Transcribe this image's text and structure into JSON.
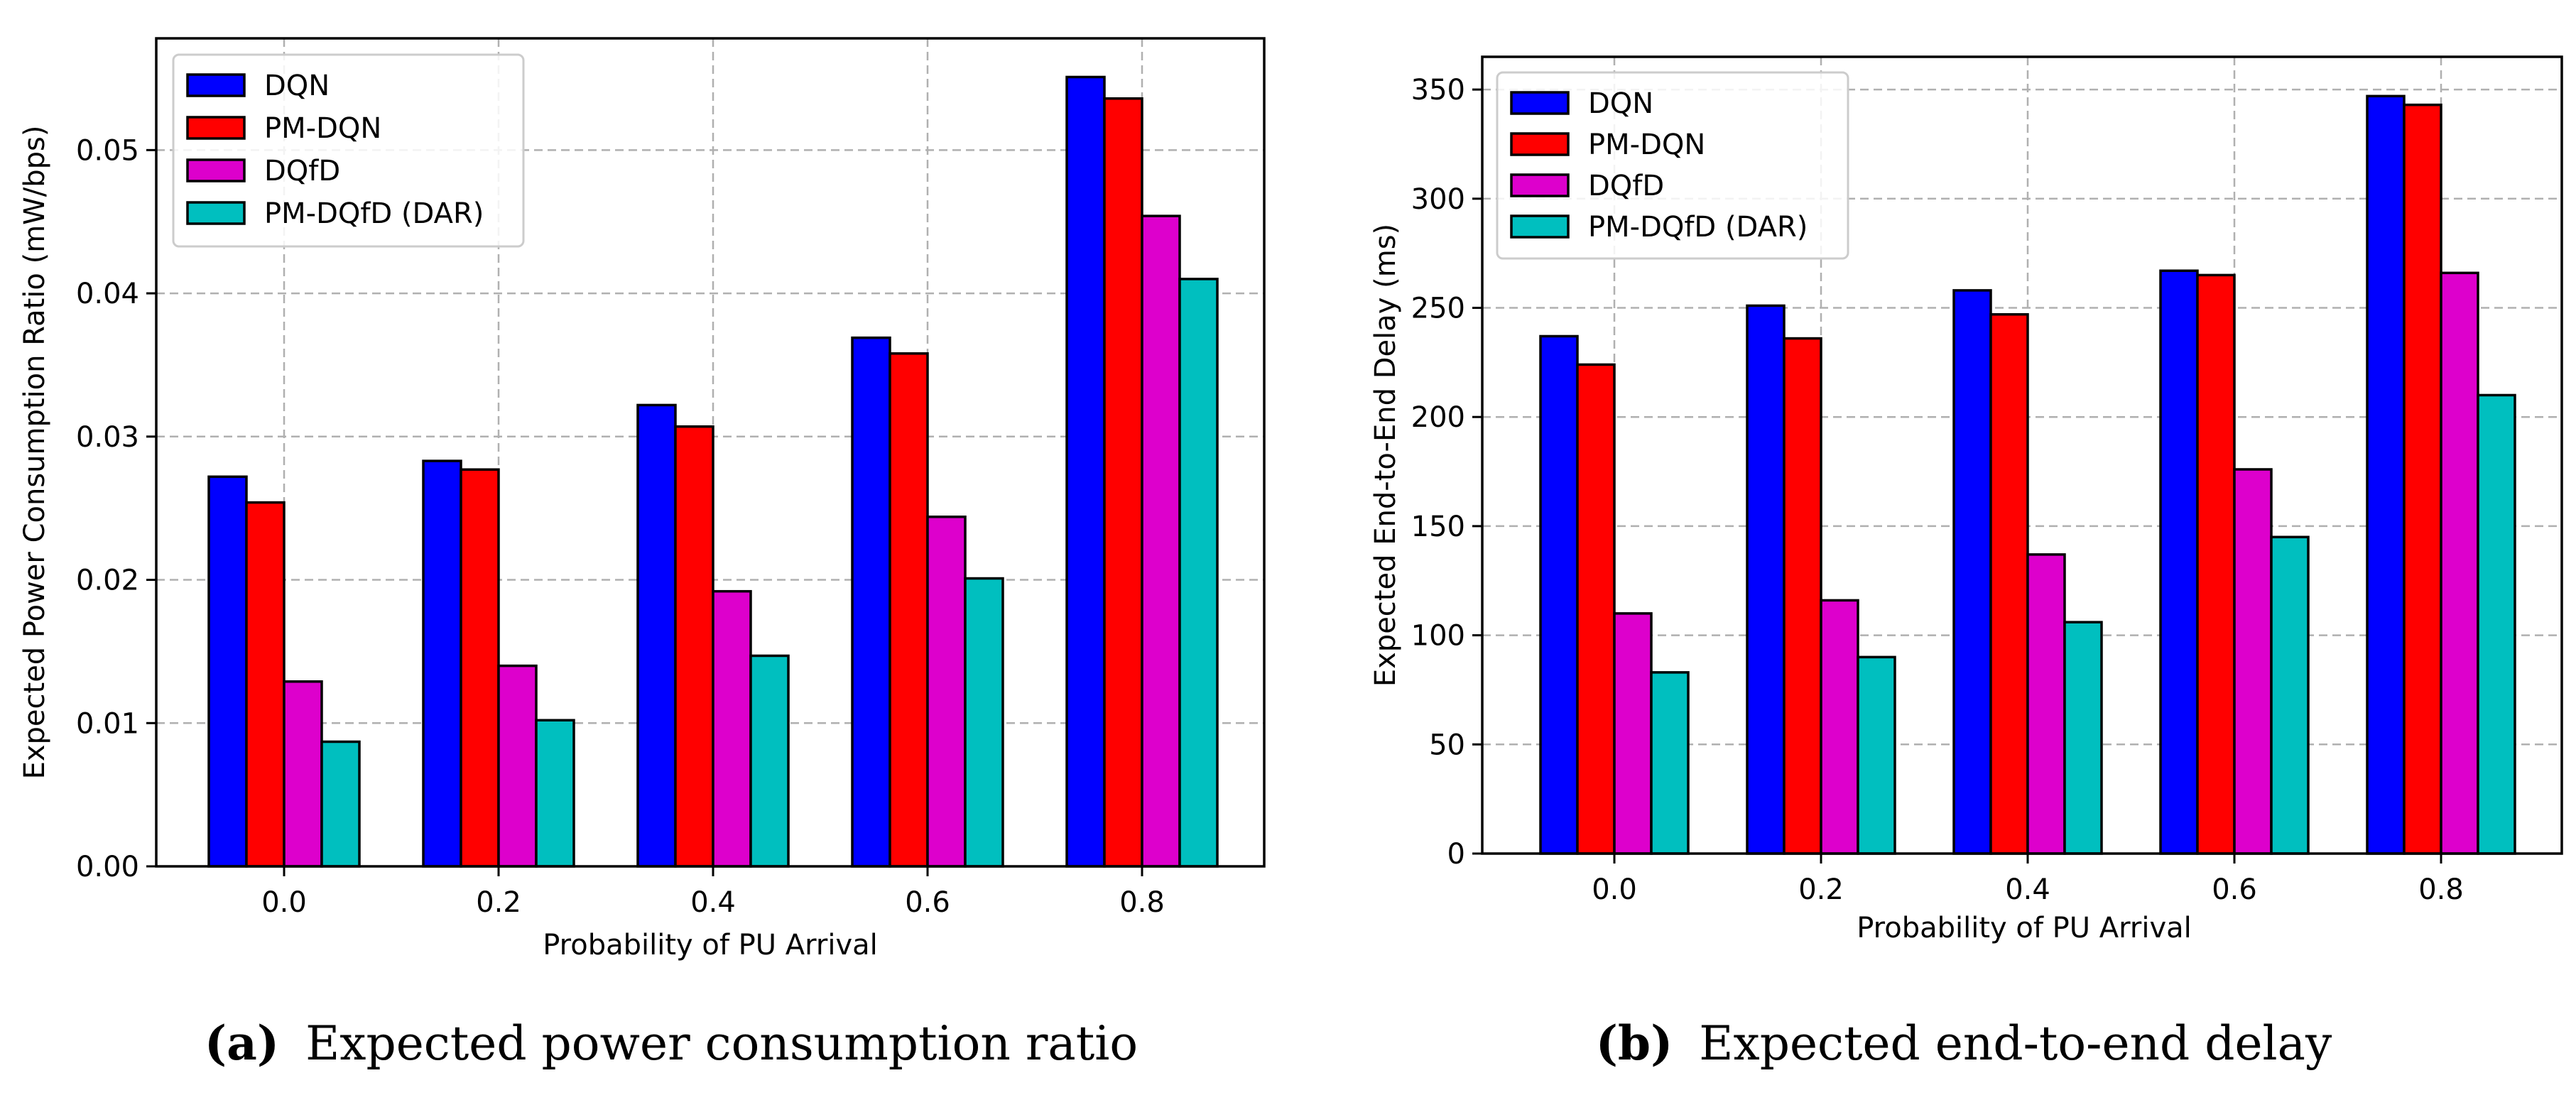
{
  "chart_data": [
    {
      "type": "bar",
      "title": "",
      "xlabel": "Probability of PU Arrival",
      "ylabel": "Expected Power Consumption Ratio (mW/bps)",
      "categories": [
        "0.0",
        "0.2",
        "0.4",
        "0.6",
        "0.8"
      ],
      "yticks": [
        "0.00",
        "0.01",
        "0.02",
        "0.03",
        "0.04",
        "0.05"
      ],
      "ylim": [
        0,
        0.0578
      ],
      "grid": true,
      "legend_position": "top-left",
      "series": [
        {
          "name": "DQN",
          "color": "#0000ff",
          "values": [
            0.0272,
            0.0283,
            0.0322,
            0.0369,
            0.0551
          ]
        },
        {
          "name": "PM-DQN",
          "color": "#ff0000",
          "values": [
            0.0254,
            0.0277,
            0.0307,
            0.0358,
            0.0536
          ]
        },
        {
          "name": "DQfD",
          "color": "#dd00cc",
          "values": [
            0.0129,
            0.014,
            0.0192,
            0.0244,
            0.0454
          ]
        },
        {
          "name": "PM-DQfD (DAR)",
          "color": "#00bfbf",
          "values": [
            0.0087,
            0.0102,
            0.0147,
            0.0201,
            0.041
          ]
        }
      ],
      "caption": {
        "label": "(a)",
        "text": "Expected power consumption ratio"
      }
    },
    {
      "type": "bar",
      "title": "",
      "xlabel": "Probability of PU Arrival",
      "ylabel": "Expected End-to-End Delay (ms)",
      "categories": [
        "0.0",
        "0.2",
        "0.4",
        "0.6",
        "0.8"
      ],
      "yticks": [
        "0",
        "50",
        "100",
        "150",
        "200",
        "250",
        "300",
        "350"
      ],
      "ylim": [
        0,
        365
      ],
      "grid": true,
      "legend_position": "top-left",
      "series": [
        {
          "name": "DQN",
          "color": "#0000ff",
          "values": [
            237,
            251,
            258,
            267,
            347
          ]
        },
        {
          "name": "PM-DQN",
          "color": "#ff0000",
          "values": [
            224,
            236,
            247,
            265,
            343
          ]
        },
        {
          "name": "DQfD",
          "color": "#dd00cc",
          "values": [
            110,
            116,
            137,
            176,
            266
          ]
        },
        {
          "name": "PM-DQfD (DAR)",
          "color": "#00bfbf",
          "values": [
            83,
            90,
            106,
            145,
            210
          ]
        }
      ],
      "caption": {
        "label": "(b)",
        "text": "Expected end-to-end delay"
      }
    }
  ]
}
